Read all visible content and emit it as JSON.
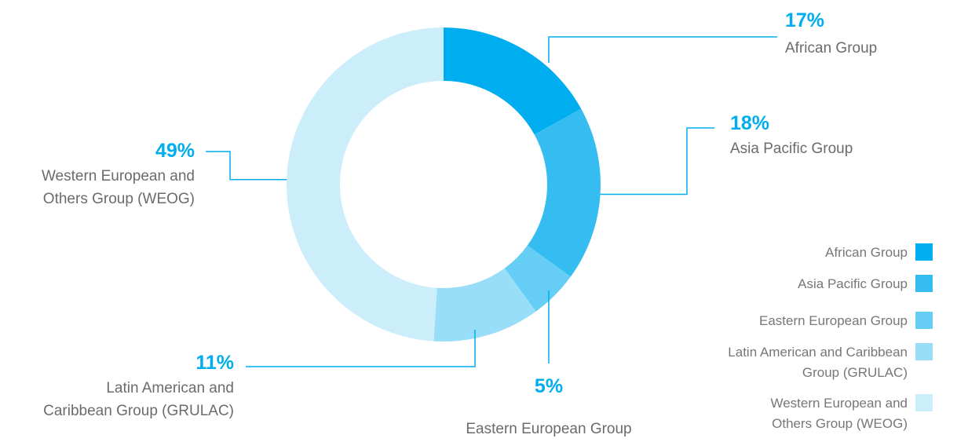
{
  "chart_data": {
    "type": "pie",
    "donut": true,
    "series": [
      {
        "name": "African Group",
        "value": 17,
        "value_label": "17%",
        "label_lines": [
          "African Group"
        ],
        "color": "#00ADEE"
      },
      {
        "name": "Asia Pacific Group",
        "value": 18,
        "value_label": "18%",
        "label_lines": [
          "Asia Pacific Group"
        ],
        "color": "#35BDF2"
      },
      {
        "name": "Eastern European Group",
        "value": 5,
        "value_label": "5%",
        "label_lines": [
          "Eastern European Group"
        ],
        "color": "#66CEF5"
      },
      {
        "name": "Latin American and Caribbean Group (GRULAC)",
        "value": 11,
        "value_label": "11%",
        "label_lines": [
          "Latin American and",
          "Caribbean Group (GRULAC)"
        ],
        "color": "#99DEF8"
      },
      {
        "name": "Western European and Others Group (WEOG)",
        "value": 49,
        "value_label": "49%",
        "label_lines": [
          "Western European and",
          "Others Group (WEOG)"
        ],
        "color": "#CCEEFB"
      }
    ],
    "legend": {
      "position": "bottom-right",
      "items": [
        {
          "lines": [
            "African Group"
          ]
        },
        {
          "lines": [
            "Asia Pacific Group"
          ]
        },
        {
          "lines": [
            "Eastern European Group"
          ]
        },
        {
          "lines": [
            "Latin American and Caribbean",
            "Group (GRULAC)"
          ]
        },
        {
          "lines": [
            "Western European and",
            "Others Group (WEOG)"
          ]
        }
      ]
    }
  },
  "colors": {
    "accent": "#00ADEE",
    "leader_line": "#00ADEE",
    "label_text": "#6B6B6B",
    "legend_text": "#777777"
  }
}
